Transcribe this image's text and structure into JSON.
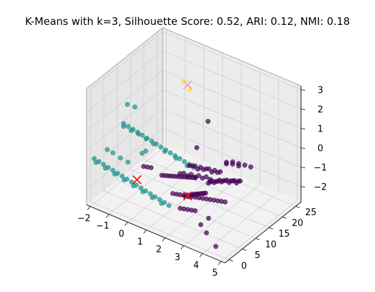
{
  "chart_data": {
    "type": "scatter",
    "projection": "3d",
    "title": "K-Means with k=3, Silhouette Score: 0.52, ARI: 0.12, NMI: 0.18",
    "xlabel": "",
    "ylabel": "",
    "zlabel": "",
    "xlim": [
      -2.2,
      5.2
    ],
    "ylim": [
      -1.5,
      27
    ],
    "zlim": [
      -2.8,
      3.2
    ],
    "x_ticks": [
      "−2",
      "−1",
      "0",
      "1",
      "2",
      "3",
      "4",
      "5"
    ],
    "y_ticks": [
      "0",
      "5",
      "10",
      "15",
      "20",
      "25"
    ],
    "z_ticks": [
      "−2",
      "−1",
      "0",
      "1",
      "2",
      "3"
    ],
    "grid": true,
    "legend": "none",
    "colors": {
      "cluster_0": "#440154",
      "cluster_1": "#21918c",
      "cluster_2": "#fde725",
      "centroid_main": "#e8191e",
      "centroid_light": "#f2a0ad",
      "pane_left": "#e6e6e6",
      "pane_right": "#ececec",
      "pane_floor": "#f2f2f2",
      "grid": "#cfcfcf",
      "edge": "#999999"
    },
    "series": [
      {
        "cluster": 0,
        "color": "#440154",
        "points": [
          [
            3.7,
            9.6,
            0.48
          ],
          [
            3.7,
            9.6,
            0.56
          ],
          [
            4.03,
            9.6,
            0.6
          ],
          [
            4.03,
            9.6,
            0.72
          ],
          [
            4.35,
            9.6,
            0.76
          ],
          [
            4.35,
            9.6,
            0.64
          ],
          [
            4.68,
            9.6,
            0.81
          ],
          [
            5.0,
            9.6,
            0.85
          ],
          [
            3.25,
            6.0,
            -0.3
          ],
          [
            3.35,
            6.0,
            -0.2
          ],
          [
            3.45,
            6.0,
            -0.1
          ],
          [
            3.55,
            6.0,
            -0.15
          ],
          [
            3.65,
            6.0,
            -0.05
          ],
          [
            3.75,
            6.0,
            0.0
          ],
          [
            3.85,
            6.0,
            0.1
          ],
          [
            3.95,
            6.0,
            0.05
          ],
          [
            4.05,
            6.0,
            0.15
          ],
          [
            4.15,
            6.0,
            0.2
          ],
          [
            4.25,
            6.0,
            0.25
          ],
          [
            4.35,
            6.0,
            0.18
          ],
          [
            4.45,
            6.0,
            0.3
          ],
          [
            4.55,
            6.0,
            0.35
          ],
          [
            4.65,
            6.0,
            0.4
          ],
          [
            4.75,
            6.0,
            0.32
          ],
          [
            4.85,
            6.0,
            0.45
          ],
          [
            4.95,
            6.0,
            0.5
          ],
          [
            2.45,
            4.5,
            0.45
          ],
          [
            2.6,
            4.5,
            0.5
          ],
          [
            2.75,
            4.5,
            0.55
          ],
          [
            2.9,
            4.5,
            0.45
          ],
          [
            3.05,
            4.5,
            0.6
          ],
          [
            3.2,
            4.5,
            0.55
          ],
          [
            3.35,
            4.5,
            0.65
          ],
          [
            3.5,
            4.5,
            0.7
          ],
          [
            3.65,
            4.5,
            0.6
          ],
          [
            3.8,
            4.5,
            0.75
          ],
          [
            3.95,
            4.5,
            0.7
          ],
          [
            4.1,
            4.5,
            0.8
          ],
          [
            2.3,
            2.0,
            0.25
          ],
          [
            2.5,
            2.0,
            0.35
          ],
          [
            2.7,
            2.0,
            0.3
          ],
          [
            2.9,
            2.0,
            0.45
          ],
          [
            3.1,
            2.0,
            0.4
          ],
          [
            3.3,
            2.0,
            0.55
          ],
          [
            3.5,
            2.0,
            0.5
          ],
          [
            3.7,
            2.0,
            0.65
          ],
          [
            3.9,
            2.0,
            0.6
          ],
          [
            1.4,
            1.5,
            -0.15
          ],
          [
            1.55,
            1.5,
            -0.1
          ],
          [
            1.7,
            1.5,
            -0.05
          ],
          [
            1.85,
            1.5,
            0.0
          ],
          [
            2.0,
            1.5,
            0.05
          ],
          [
            2.15,
            1.5,
            0.1
          ],
          [
            2.3,
            1.5,
            0.15
          ],
          [
            2.45,
            1.5,
            0.2
          ],
          [
            2.6,
            1.5,
            0.25
          ],
          [
            2.75,
            1.5,
            0.3
          ],
          [
            2.9,
            1.5,
            0.35
          ],
          [
            3.05,
            1.5,
            0.4
          ],
          [
            3.2,
            1.5,
            0.45
          ],
          [
            0.5,
            1.0,
            0.0
          ],
          [
            0.7,
            1.0,
            0.05
          ],
          [
            0.9,
            1.0,
            0.1
          ],
          [
            3.0,
            -1.0,
            -0.3
          ],
          [
            3.1,
            -1.0,
            -0.2
          ],
          [
            3.2,
            -1.0,
            -0.25
          ],
          [
            3.3,
            -1.0,
            -0.1
          ],
          [
            3.4,
            -1.0,
            -0.05
          ],
          [
            3.5,
            -1.0,
            0.0
          ],
          [
            3.6,
            -1.0,
            0.05
          ],
          [
            3.7,
            -1.0,
            0.1
          ],
          [
            3.8,
            -1.0,
            0.15
          ],
          [
            3.9,
            -1.0,
            0.2
          ],
          [
            4.0,
            -1.0,
            0.25
          ],
          [
            4.1,
            -1.0,
            0.3
          ],
          [
            2.2,
            0.0,
            -0.6
          ],
          [
            2.4,
            0.0,
            -0.55
          ],
          [
            2.6,
            0.0,
            -0.5
          ],
          [
            2.8,
            0.0,
            -0.45
          ],
          [
            3.0,
            0.0,
            -0.4
          ],
          [
            3.2,
            0.0,
            -0.35
          ],
          [
            3.4,
            0.0,
            -0.3
          ],
          [
            3.6,
            0.0,
            -0.25
          ],
          [
            3.8,
            0.0,
            -0.2
          ],
          [
            4.0,
            0.0,
            -0.15
          ],
          [
            4.2,
            0.0,
            -0.1
          ],
          [
            4.4,
            0.0,
            -0.05
          ],
          [
            4.6,
            0.0,
            0.0
          ],
          [
            4.8,
            0.0,
            0.05
          ],
          [
            5.0,
            0.0,
            0.1
          ],
          [
            2.6,
            0.0,
            -1.2
          ],
          [
            2.8,
            0.0,
            -1.15
          ],
          [
            3.0,
            0.0,
            -1.1
          ],
          [
            3.2,
            0.0,
            -1.05
          ],
          [
            3.4,
            0.0,
            -1.0
          ],
          [
            3.9,
            1.5,
            -1.35
          ],
          [
            3.7,
            0.0,
            -1.6
          ],
          [
            4.5,
            0.0,
            -2.4
          ],
          [
            4.0,
            0.0,
            -1.9
          ],
          [
            1.2,
            16.0,
            -0.4
          ],
          [
            1.8,
            16.0,
            1.2
          ]
        ]
      },
      {
        "cluster": 1,
        "color": "#21918c",
        "points": [
          [
            -2.0,
            11.0,
            0.1
          ],
          [
            -1.75,
            11.0,
            0.05
          ],
          [
            -1.5,
            11.0,
            0.0
          ],
          [
            -1.25,
            11.0,
            -0.05
          ],
          [
            -1.0,
            11.0,
            -0.1
          ],
          [
            -0.75,
            11.0,
            -0.15
          ],
          [
            -0.5,
            11.0,
            -0.2
          ],
          [
            -0.25,
            11.0,
            -0.25
          ],
          [
            0.0,
            11.0,
            -0.3
          ],
          [
            0.25,
            11.0,
            -0.35
          ],
          [
            0.5,
            11.0,
            -0.4
          ],
          [
            0.75,
            11.0,
            -0.45
          ],
          [
            1.0,
            11.0,
            -0.5
          ],
          [
            1.25,
            11.0,
            -0.55
          ],
          [
            1.5,
            11.0,
            -0.6
          ],
          [
            1.75,
            11.0,
            -0.65
          ],
          [
            -2.0,
            11.0,
            -0.05
          ],
          [
            -1.6,
            11.0,
            -0.1
          ],
          [
            -1.2,
            11.0,
            -0.12
          ],
          [
            -0.8,
            11.0,
            -0.2
          ],
          [
            -0.4,
            11.0,
            -0.3
          ],
          [
            0.2,
            11.0,
            -0.45
          ],
          [
            0.8,
            11.0,
            -0.55
          ],
          [
            1.4,
            11.0,
            -0.7
          ],
          [
            -2.0,
            0.0,
            -0.5
          ],
          [
            -1.75,
            0.0,
            -0.55
          ],
          [
            -1.5,
            0.0,
            -0.6
          ],
          [
            -1.25,
            0.0,
            -0.65
          ],
          [
            -1.0,
            0.0,
            -0.7
          ],
          [
            -0.75,
            0.0,
            -0.75
          ],
          [
            -0.5,
            0.0,
            -0.8
          ],
          [
            -0.25,
            0.0,
            -0.85
          ],
          [
            0.0,
            0.0,
            -0.9
          ],
          [
            0.25,
            0.0,
            -0.95
          ],
          [
            0.5,
            0.0,
            -1.0
          ],
          [
            0.75,
            0.0,
            -1.05
          ],
          [
            1.0,
            0.0,
            -1.1
          ],
          [
            1.25,
            0.0,
            -1.15
          ],
          [
            1.5,
            0.0,
            -1.2
          ],
          [
            1.75,
            0.0,
            -1.25
          ],
          [
            2.0,
            0.0,
            -1.3
          ],
          [
            -1.9,
            0.0,
            -0.65
          ],
          [
            -1.4,
            0.0,
            -0.75
          ],
          [
            -0.9,
            0.0,
            -0.85
          ],
          [
            -0.4,
            0.0,
            -0.95
          ],
          [
            0.1,
            0.0,
            -1.05
          ],
          [
            0.6,
            0.0,
            -1.15
          ],
          [
            1.1,
            0.0,
            -1.25
          ],
          [
            1.6,
            0.0,
            -1.35
          ],
          [
            -1.3,
            0.0,
            0.25
          ],
          [
            -1.0,
            0.0,
            0.2
          ],
          [
            -0.6,
            0.0,
            0.1
          ],
          [
            -0.2,
            0.0,
            0.05
          ],
          [
            -1.6,
            9.6,
            1.4
          ],
          [
            -1.4,
            11.0,
            1.2
          ],
          [
            -0.3,
            6.0,
            -0.2
          ],
          [
            -0.1,
            6.0,
            0.0
          ]
        ]
      },
      {
        "cluster": 2,
        "color": "#fde725",
        "points": [
          [
            -0.2,
            21.0,
            1.9
          ],
          [
            0.1,
            21.0,
            1.6
          ]
        ]
      }
    ],
    "centroids": [
      {
        "x": 3.0,
        "y": 0.0,
        "z": -0.4,
        "color": "#e8191e"
      },
      {
        "x": 0.0,
        "y": 2.0,
        "z": -1.0,
        "color": "#e8191e"
      },
      {
        "x": 0.0,
        "y": 21.0,
        "z": 1.8,
        "color": "#f2a0ad"
      }
    ]
  }
}
